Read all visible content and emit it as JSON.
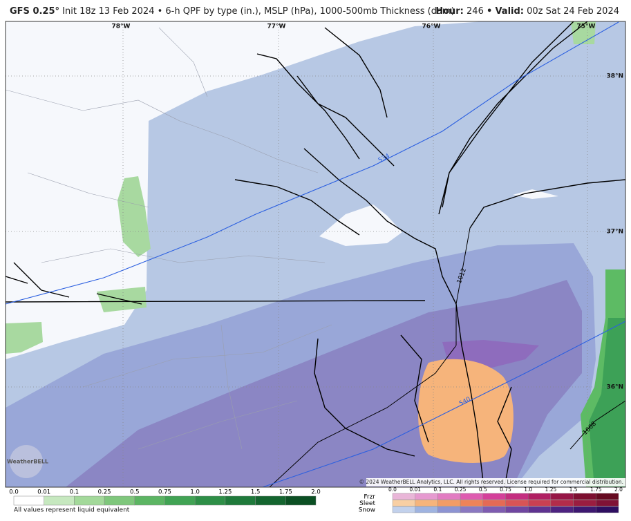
{
  "header": {
    "model": "GFS 0.25°",
    "description": "Init 18z 13 Feb 2024 • 6-h QPF by type (in.), MSLP (hPa), 1000-500mb Thickness (dam)",
    "hour_label": "Hour:",
    "hour": "246",
    "separator": "•",
    "valid_label": "Valid:",
    "valid": "00z Sat 24 Feb 2024"
  },
  "map": {
    "longitude_labels": [
      "78°W",
      "77°W",
      "76°W",
      "75°W"
    ],
    "latitude_labels": [
      "38°N",
      "37°N",
      "36°N"
    ],
    "contour_labels": [
      "534",
      "540",
      "1012",
      "1008"
    ],
    "copyright": "© 2024 WeatherBELL Analytics, LLC. All rights reserved. License required for commercial distribution.",
    "logo": "WeatherBELL"
  },
  "legend": {
    "qpf": {
      "ticks": [
        "0.0",
        "0.01",
        "0.1",
        "0.25",
        "0.5",
        "0.75",
        "1.0",
        "1.25",
        "1.5",
        "1.75",
        "2.0"
      ],
      "note": "All values represent liquid equivalent"
    },
    "type": {
      "rows": [
        "Frzr",
        "Sleet",
        "Snow"
      ],
      "ticks": [
        "0.0",
        "0.01",
        "0.1",
        "0.25",
        "0.5",
        "0.75",
        "1.0",
        "1.25",
        "1.5",
        "1.75",
        "2.0"
      ]
    }
  }
}
